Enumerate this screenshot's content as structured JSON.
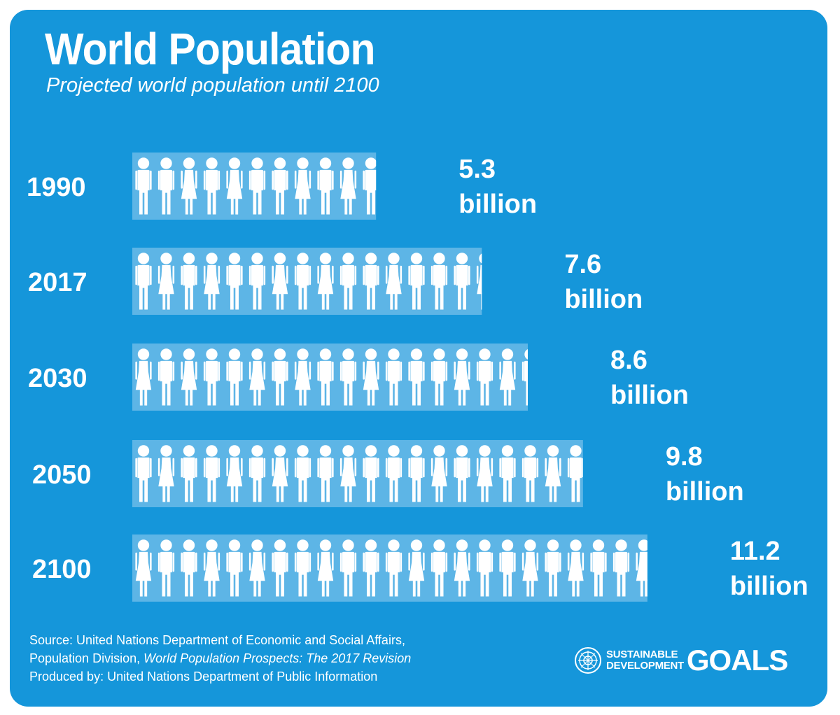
{
  "header": {
    "title": "World Population",
    "subtitle": "Projected world population until 2100"
  },
  "chart_data": {
    "type": "bar",
    "orientation": "horizontal",
    "style": "pictogram",
    "categories": [
      "1990",
      "2017",
      "2030",
      "2050",
      "2100"
    ],
    "values": [
      5.3,
      7.6,
      8.6,
      9.8,
      11.2
    ],
    "unit": "billion",
    "value_labels": [
      {
        "number": "5.3",
        "unit": "billion"
      },
      {
        "number": "7.6",
        "unit": "billion"
      },
      {
        "number": "8.6",
        "unit": "billion"
      },
      {
        "number": "9.8",
        "unit": "billion"
      },
      {
        "number": "11.2",
        "unit": "billion"
      }
    ],
    "title": "World Population",
    "subtitle": "Projected world population until 2100",
    "xlabel": "",
    "ylabel": "",
    "grid": false,
    "legend": "none"
  },
  "footer": {
    "source_prefix": "Source: United Nations Department of Economic and Social Affairs,",
    "source_line2_plain": "Population Division, ",
    "source_line2_italic": "World Population Prospects: The 2017 Revision",
    "produced_by": "Produced by: United Nations Department of Public Information"
  },
  "logo": {
    "word1": "SUSTAINABLE",
    "word2": "DEVELOPMENT",
    "goals": "GOALS",
    "icon": "un-emblem-icon"
  },
  "colors": {
    "background": "#1596da",
    "bar": "#5db5e6",
    "figure": "#ffffff",
    "text": "#ffffff"
  }
}
